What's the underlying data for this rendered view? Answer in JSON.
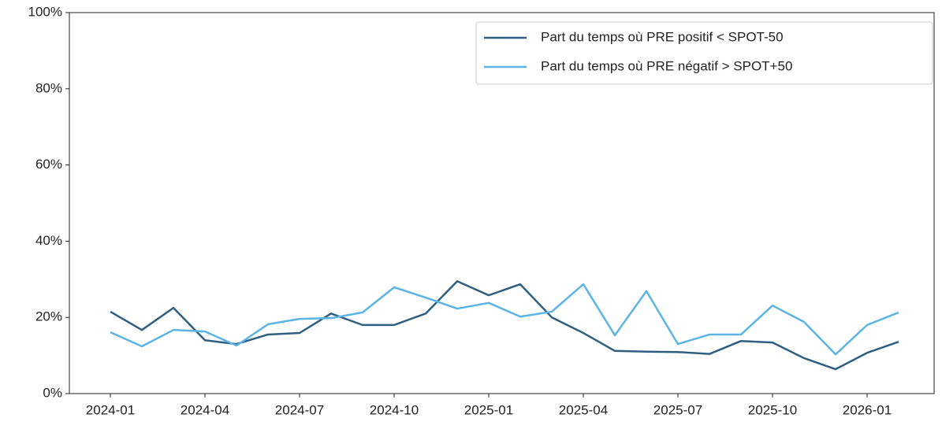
{
  "chart_data": {
    "type": "line",
    "x": [
      "2024-01",
      "2024-02",
      "2024-03",
      "2024-04",
      "2024-05",
      "2024-06",
      "2024-07",
      "2024-08",
      "2024-09",
      "2024-10",
      "2024-11",
      "2024-12",
      "2025-01",
      "2025-02",
      "2025-03",
      "2025-04",
      "2025-05",
      "2025-06",
      "2025-07",
      "2025-08",
      "2025-09",
      "2025-10",
      "2025-11",
      "2025-12",
      "2026-01",
      "2026-02"
    ],
    "series": [
      {
        "name": "Part du temps où PRE positif < SPOT-50",
        "color": "#2e5f82",
        "values": [
          21.5,
          16.7,
          22.5,
          14,
          13,
          15.5,
          15.9,
          21,
          18,
          18,
          21,
          29.5,
          25.8,
          28.7,
          20,
          15.9,
          11.2,
          11,
          10.9,
          10.4,
          13.8,
          13.4,
          9.3,
          6.4,
          10.7,
          13.6
        ]
      },
      {
        "name": "Part du temps où PRE négatif > SPOT+50",
        "color": "#5ab4e5",
        "values": [
          16.1,
          12.4,
          16.7,
          16.3,
          12.6,
          18.2,
          19.6,
          19.8,
          21.3,
          27.9,
          25.2,
          22.3,
          23.8,
          20.2,
          21.5,
          28.7,
          15.3,
          26.9,
          13,
          15.5,
          15.5,
          23.1,
          18.8,
          10.3,
          18,
          21.3
        ]
      }
    ],
    "xticks": [
      "2024-01",
      "2024-04",
      "2024-07",
      "2024-10",
      "2025-01",
      "2025-04",
      "2025-07",
      "2025-10",
      "2026-01"
    ],
    "ylim": [
      0,
      100
    ],
    "yticks": [
      {
        "value": 0,
        "label": "0%"
      },
      {
        "value": 20,
        "label": "20%"
      },
      {
        "value": 40,
        "label": "40%"
      },
      {
        "value": 60,
        "label": "60%"
      },
      {
        "value": 80,
        "label": "80%"
      },
      {
        "value": 100,
        "label": "100%"
      }
    ],
    "legend": "upper right"
  }
}
